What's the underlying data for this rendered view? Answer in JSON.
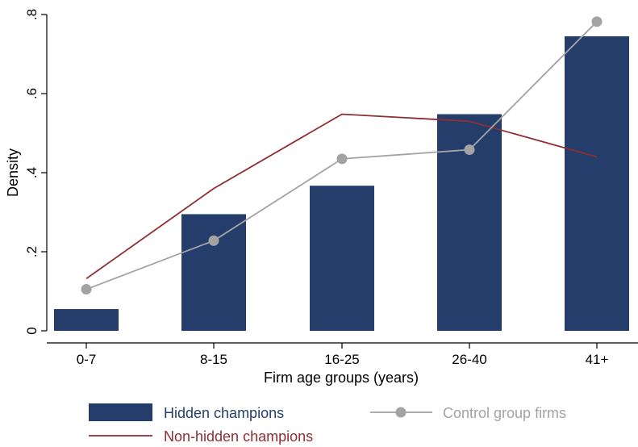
{
  "chart_data": {
    "type": "bar",
    "categories": [
      "0-7",
      "8-15",
      "16-25",
      "26-40",
      "41+"
    ],
    "xlabel": "Firm age groups (years)",
    "ylabel": "Density",
    "ylim": [
      0,
      0.8
    ],
    "yticks": [
      {
        "value": 0,
        "label": "0"
      },
      {
        "value": 0.2,
        "label": ".2"
      },
      {
        "value": 0.4,
        "label": ".4"
      },
      {
        "value": 0.6,
        "label": ".6"
      },
      {
        "value": 0.8,
        "label": ".8"
      }
    ],
    "grid": false,
    "legend_position": "bottom",
    "series": [
      {
        "name": "Hidden champions",
        "kind": "bar",
        "color": "#253d6b",
        "values": [
          0.055,
          0.295,
          0.367,
          0.548,
          0.745
        ]
      },
      {
        "name": "Control group firms",
        "kind": "line-markers",
        "color": "#a3a3a3",
        "values": [
          0.105,
          0.228,
          0.435,
          0.458,
          0.782
        ]
      },
      {
        "name": "Non-hidden champions",
        "kind": "line",
        "color": "#8f2d32",
        "values": [
          0.132,
          0.36,
          0.548,
          0.53,
          0.44
        ]
      }
    ]
  }
}
